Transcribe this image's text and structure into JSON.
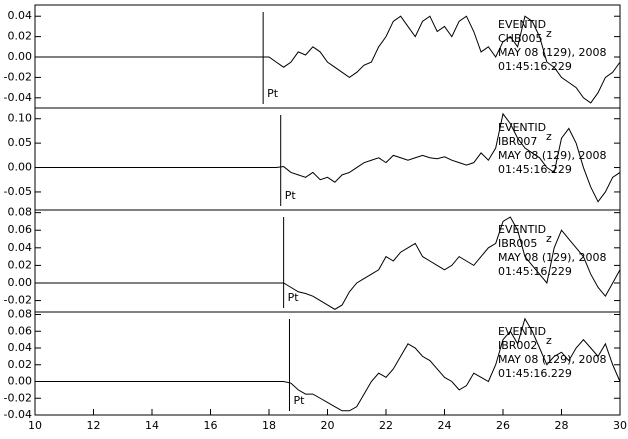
{
  "chart_data": [
    {
      "type": "line",
      "xlim": [
        10,
        30
      ],
      "ylim": [
        -0.05,
        0.051
      ],
      "yticks": [
        0.04,
        0.02,
        {
          "value": 0,
          "label": "0.00"
        },
        -0.02,
        -0.04
      ],
      "marker": {
        "x": 17.8,
        "label": "Pt"
      },
      "info": [
        "EVENTID",
        "CHB005",
        "MAY 08 (129), 2008",
        "01:45:16.229"
      ],
      "component": "z",
      "series": [
        {
          "color": "#000000",
          "x": [
            10,
            18,
            18.25,
            18.5,
            18.75,
            19,
            19.25,
            19.5,
            19.75,
            20,
            20.25,
            20.5,
            20.75,
            21,
            21.25,
            21.5,
            21.75,
            22,
            22.25,
            22.5,
            22.75,
            23,
            23.25,
            23.5,
            23.75,
            24,
            24.25,
            24.5,
            24.75,
            25,
            25.25,
            25.5,
            25.75,
            26,
            26.25,
            26.5,
            26.75,
            27,
            27.25,
            27.5,
            27.75,
            28,
            28.25,
            28.5,
            28.75,
            29,
            29.25,
            29.5,
            29.75,
            30
          ],
          "values": [
            0,
            0,
            -0.005,
            -0.01,
            -0.005,
            0.005,
            0.002,
            0.01,
            0.005,
            -0.005,
            -0.01,
            -0.015,
            -0.02,
            -0.015,
            -0.008,
            -0.005,
            0.01,
            0.02,
            0.035,
            0.04,
            0.03,
            0.02,
            0.035,
            0.04,
            0.025,
            0.03,
            0.02,
            0.035,
            0.04,
            0.025,
            0.005,
            0.01,
            0,
            0.015,
            0.02,
            0.01,
            0.04,
            0.035,
            0.02,
            -0.005,
            -0.01,
            -0.02,
            -0.025,
            -0.03,
            -0.04,
            -0.045,
            -0.035,
            -0.02,
            -0.015,
            -0.005
          ]
        }
      ]
    },
    {
      "type": "line",
      "xlim": [
        10,
        30
      ],
      "ylim": [
        -0.087,
        0.122
      ],
      "yticks": [
        {
          "value": 0.1,
          "label": "0.10"
        },
        0.05,
        {
          "value": 0,
          "label": "0.00"
        },
        -0.05
      ],
      "marker": {
        "x": 18.4,
        "label": "Pt"
      },
      "info": [
        "EVENTID",
        "IBR007",
        "MAY 08 (129), 2008",
        "01:45:16.229"
      ],
      "component": "z",
      "series": [
        {
          "color": "#000000",
          "x": [
            10,
            18,
            18.25,
            18.5,
            18.75,
            19,
            19.25,
            19.5,
            19.75,
            20,
            20.25,
            20.5,
            20.75,
            21,
            21.25,
            21.5,
            21.75,
            22,
            22.25,
            22.5,
            22.75,
            23,
            23.25,
            23.5,
            23.75,
            24,
            24.25,
            24.5,
            24.75,
            25,
            25.25,
            25.5,
            25.75,
            26,
            26.25,
            26.5,
            26.75,
            27,
            27.25,
            27.5,
            27.75,
            28,
            28.25,
            28.5,
            28.75,
            29,
            29.25,
            29.5,
            29.75,
            30
          ],
          "values": [
            0,
            0,
            0,
            0.002,
            -0.01,
            -0.015,
            -0.02,
            -0.01,
            -0.025,
            -0.02,
            -0.03,
            -0.015,
            -0.01,
            0,
            0.01,
            0.015,
            0.02,
            0.01,
            0.025,
            0.02,
            0.015,
            0.02,
            0.025,
            0.02,
            0.018,
            0.022,
            0.015,
            0.01,
            0.005,
            0.01,
            0.03,
            0.015,
            0.04,
            0.11,
            0.09,
            0.06,
            0.04,
            0.03,
            0.02,
            0,
            -0.01,
            0.06,
            0.08,
            0.05,
            0,
            -0.04,
            -0.07,
            -0.05,
            -0.02,
            -0.01
          ]
        }
      ]
    },
    {
      "type": "line",
      "xlim": [
        10,
        30
      ],
      "ylim": [
        -0.033,
        0.083
      ],
      "yticks": [
        0.08,
        0.06,
        0.04,
        0.02,
        {
          "value": 0,
          "label": "0.00"
        },
        -0.02
      ],
      "marker": {
        "x": 18.5,
        "label": "Pt"
      },
      "info": [
        "EVENTID",
        "IBR005",
        "MAY 08 (129), 2008",
        "01:45:16.229"
      ],
      "component": "z",
      "series": [
        {
          "color": "#000000",
          "x": [
            10,
            18,
            18.25,
            18.5,
            18.75,
            19,
            19.25,
            19.5,
            19.75,
            20,
            20.25,
            20.5,
            20.75,
            21,
            21.25,
            21.5,
            21.75,
            22,
            22.25,
            22.5,
            22.75,
            23,
            23.25,
            23.5,
            23.75,
            24,
            24.25,
            24.5,
            24.75,
            25,
            25.25,
            25.5,
            25.75,
            26,
            26.25,
            26.5,
            26.75,
            27,
            27.25,
            27.5,
            27.75,
            28,
            28.25,
            28.5,
            28.75,
            29,
            29.25,
            29.5,
            29.75,
            30
          ],
          "values": [
            0,
            0,
            0,
            0,
            -0.005,
            -0.01,
            -0.012,
            -0.015,
            -0.02,
            -0.025,
            -0.03,
            -0.025,
            -0.01,
            0,
            0.005,
            0.01,
            0.015,
            0.03,
            0.025,
            0.035,
            0.04,
            0.045,
            0.03,
            0.025,
            0.02,
            0.015,
            0.02,
            0.03,
            0.025,
            0.02,
            0.03,
            0.04,
            0.045,
            0.07,
            0.075,
            0.06,
            0.03,
            0.02,
            0.01,
            0,
            0.04,
            0.06,
            0.05,
            0.04,
            0.03,
            0.01,
            -0.005,
            -0.015,
            0,
            0.015
          ]
        }
      ]
    },
    {
      "type": "line",
      "xlim": [
        10,
        30
      ],
      "ylim": [
        -0.04,
        0.083
      ],
      "xticks": [
        10,
        12,
        14,
        16,
        18,
        20,
        22,
        24,
        26,
        28,
        30
      ],
      "yticks": [
        0.08,
        0.06,
        0.04,
        0.02,
        {
          "value": 0,
          "label": "0.00"
        },
        -0.02,
        -0.04
      ],
      "marker": {
        "x": 18.7,
        "label": "Pt"
      },
      "info": [
        "EVENTID",
        "IBR002",
        "MAY 08 (129), 2008",
        "01:45:16.229"
      ],
      "component": "z",
      "series": [
        {
          "color": "#000000",
          "x": [
            10,
            18,
            18.25,
            18.5,
            18.75,
            19,
            19.25,
            19.5,
            19.75,
            20,
            20.25,
            20.5,
            20.75,
            21,
            21.25,
            21.5,
            21.75,
            22,
            22.25,
            22.5,
            22.75,
            23,
            23.25,
            23.5,
            23.75,
            24,
            24.25,
            24.5,
            24.75,
            25,
            25.25,
            25.5,
            25.75,
            26,
            26.25,
            26.5,
            26.75,
            27,
            27.25,
            27.5,
            27.75,
            28,
            28.25,
            28.5,
            28.75,
            29,
            29.25,
            29.5,
            29.75,
            30
          ],
          "values": [
            0,
            0,
            0,
            0,
            -0.002,
            -0.01,
            -0.015,
            -0.015,
            -0.02,
            -0.025,
            -0.03,
            -0.035,
            -0.035,
            -0.03,
            -0.015,
            0,
            0.01,
            0.005,
            0.015,
            0.03,
            0.045,
            0.04,
            0.03,
            0.025,
            0.015,
            0.005,
            0,
            -0.01,
            -0.005,
            0.01,
            0.005,
            0,
            0.02,
            0.05,
            0.06,
            0.045,
            0.075,
            0.06,
            0.04,
            0.02,
            0.03,
            0.035,
            0.025,
            0.04,
            0.05,
            0.04,
            0.03,
            0.045,
            0.02,
            0
          ]
        }
      ]
    }
  ]
}
